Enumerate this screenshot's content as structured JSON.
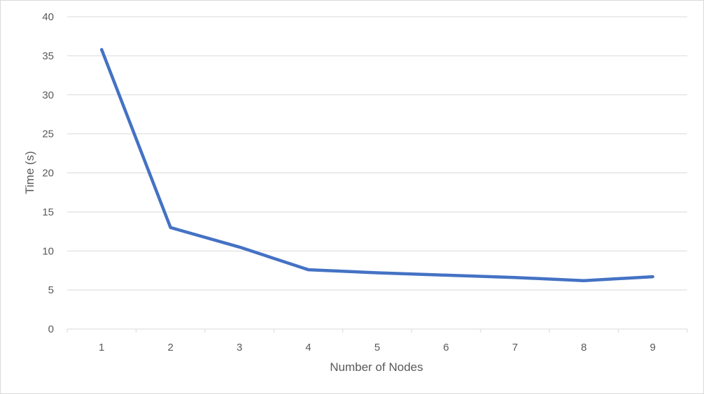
{
  "chart_data": {
    "type": "line",
    "title": "",
    "xlabel": "Number of Nodes",
    "ylabel": "Time (s)",
    "categories": [
      "1",
      "2",
      "3",
      "4",
      "5",
      "6",
      "7",
      "8",
      "9"
    ],
    "series": [
      {
        "values": [
          35.8,
          13.0,
          10.5,
          7.6,
          7.2,
          6.9,
          6.6,
          6.2,
          6.7
        ],
        "color": "#4472C4"
      }
    ],
    "ylim": [
      0,
      40
    ],
    "yticks": [
      "0",
      "5",
      "10",
      "15",
      "20",
      "25",
      "30",
      "35",
      "40"
    ],
    "grid": true,
    "legend": "none"
  }
}
